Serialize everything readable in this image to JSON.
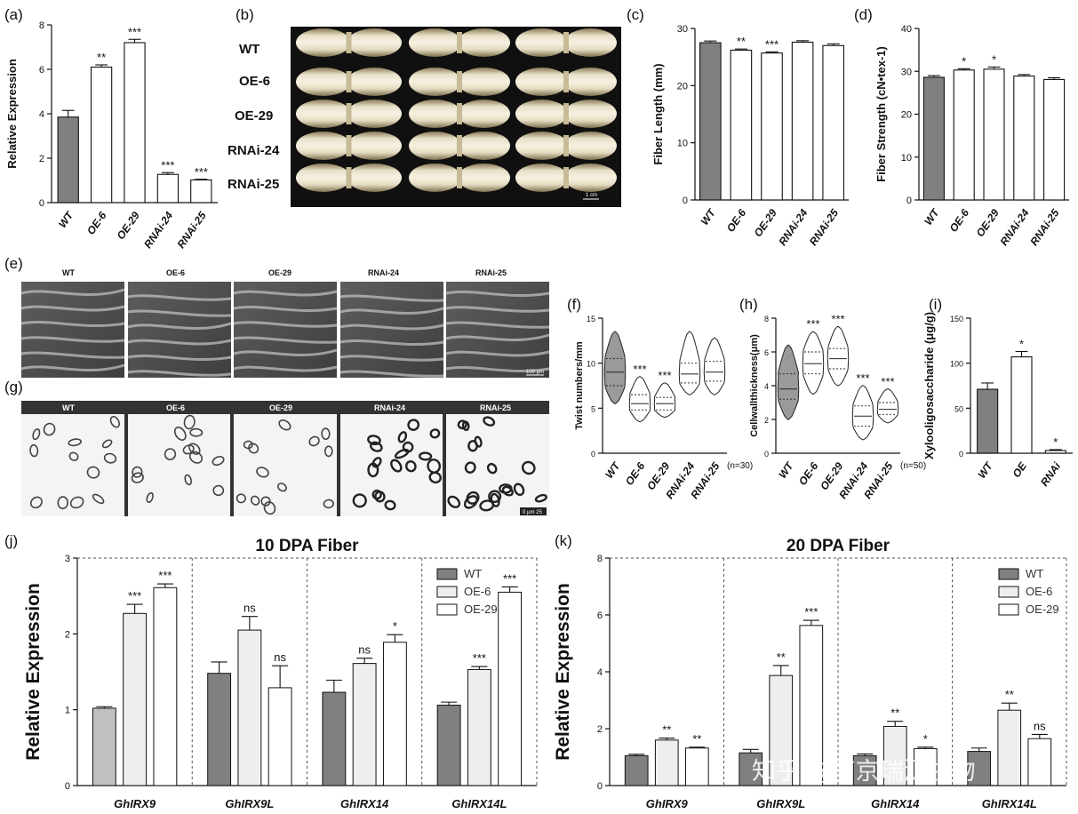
{
  "panels": {
    "a": "(a)",
    "b": "(b)",
    "c": "(c)",
    "d": "(d)",
    "e": "(e)",
    "f": "(f)",
    "g": "(g)",
    "h": "(h)",
    "i": "(i)",
    "j": "(j)",
    "k": "(k)"
  },
  "photo": {
    "line_names": [
      "WT",
      "OE-6",
      "OE-29",
      "RNAi-24",
      "RNAi-25"
    ],
    "scale": "1 cm"
  },
  "sem": {
    "labels": [
      "WT",
      "OE-6",
      "OE-29",
      "RNAi-24",
      "RNAi-25"
    ],
    "scale": "100 μm"
  },
  "sections": {
    "labels": [
      "WT",
      "OE-6",
      "OE-29",
      "RNAi-24",
      "RNAi-25"
    ],
    "scale": "0  μm  25"
  },
  "colors": {
    "wt": "#808080",
    "oe6": "#eeeeee",
    "white": "#ffffff",
    "ink": "#111111"
  },
  "watermark": "知乎 @南京瑞源生物",
  "chart_data": [
    {
      "id": "a",
      "type": "bar",
      "categories": [
        "WT",
        "OE-6",
        "OE-29",
        "RNAi-24",
        "RNAi-25"
      ],
      "values": [
        3.85,
        6.1,
        7.2,
        1.27,
        1.02
      ],
      "errors": [
        0.3,
        0.1,
        0.15,
        0.08,
        0.03
      ],
      "significance": [
        "",
        "**",
        "***",
        "***",
        "***"
      ],
      "ylabel": "Relative Expression",
      "ylim": [
        0,
        8
      ],
      "yticks": [
        0,
        2,
        4,
        6,
        8
      ]
    },
    {
      "id": "c",
      "type": "bar",
      "categories": [
        "WT",
        "OE-6",
        "OE-29",
        "RNAi-24",
        "RNAi-25"
      ],
      "values": [
        27.5,
        26.2,
        25.7,
        27.6,
        27.0
      ],
      "errors": [
        0.3,
        0.2,
        0.2,
        0.25,
        0.3
      ],
      "significance": [
        "",
        "**",
        "***",
        "",
        ""
      ],
      "ylabel": "Fiber Length (mm)",
      "ylim": [
        0,
        30
      ],
      "yticks": [
        0,
        10,
        20,
        30
      ]
    },
    {
      "id": "d",
      "type": "bar",
      "categories": [
        "WT",
        "OE-6",
        "OE-29",
        "RNAi-24",
        "RNAi-25"
      ],
      "values": [
        28.6,
        30.3,
        30.5,
        28.9,
        28.1
      ],
      "errors": [
        0.4,
        0.3,
        0.5,
        0.35,
        0.4
      ],
      "significance": [
        "",
        "*",
        "*",
        "",
        ""
      ],
      "ylabel": "Fiber Strength (cN•tex-1)",
      "ylim": [
        0,
        40
      ],
      "yticks": [
        0,
        10,
        20,
        30,
        40
      ]
    },
    {
      "id": "f",
      "type": "violin",
      "categories": [
        "WT",
        "OE-6",
        "OE-29",
        "RNAi-24",
        "RNAi-25"
      ],
      "violins": [
        {
          "min": 5.5,
          "q1": 7.5,
          "median": 9.0,
          "q3": 10.5,
          "max": 13.5
        },
        {
          "min": 3.5,
          "q1": 4.8,
          "median": 5.5,
          "q3": 6.5,
          "max": 8.5
        },
        {
          "min": 4.0,
          "q1": 4.8,
          "median": 5.5,
          "q3": 6.2,
          "max": 7.8
        },
        {
          "min": 6.5,
          "q1": 7.8,
          "median": 8.8,
          "q3": 10.0,
          "max": 13.5
        },
        {
          "min": 6.5,
          "q1": 8.0,
          "median": 9.0,
          "q3": 10.2,
          "max": 12.8
        }
      ],
      "significance": [
        "",
        "***",
        "***",
        "",
        ""
      ],
      "ylabel": "Twist numbers/mm",
      "ylim": [
        0,
        15
      ],
      "yticks": [
        0,
        5,
        10,
        15
      ],
      "note": "(n=30)"
    },
    {
      "id": "h",
      "type": "violin",
      "categories": [
        "WT",
        "OE-6",
        "OE-29",
        "RNAi-24",
        "RNAi-25"
      ],
      "violins": [
        {
          "min": 2.0,
          "q1": 3.2,
          "median": 3.8,
          "q3": 4.7,
          "max": 6.4
        },
        {
          "min": 3.5,
          "q1": 4.7,
          "median": 5.3,
          "q3": 6.0,
          "max": 7.2
        },
        {
          "min": 4.0,
          "q1": 5.0,
          "median": 5.6,
          "q3": 6.2,
          "max": 7.5
        },
        {
          "min": 0.8,
          "q1": 1.6,
          "median": 2.2,
          "q3": 2.8,
          "max": 4.0
        },
        {
          "min": 1.8,
          "q1": 2.3,
          "median": 2.6,
          "q3": 3.0,
          "max": 3.8
        }
      ],
      "significance": [
        "",
        "***",
        "***",
        "***",
        "***"
      ],
      "ylabel": "Cellwallthickness(μm)",
      "ylim": [
        0,
        8
      ],
      "yticks": [
        0,
        2,
        4,
        6,
        8
      ],
      "note": "(n=50)"
    },
    {
      "id": "i",
      "type": "bar",
      "categories": [
        "WT",
        "OE",
        "RNAi"
      ],
      "values": [
        71,
        107,
        3
      ],
      "errors": [
        7,
        6,
        1
      ],
      "significance": [
        "",
        "*",
        "*"
      ],
      "ylabel": "Xylooligosaccharide (μg/g)",
      "ylim": [
        0,
        150
      ],
      "yticks": [
        0,
        50,
        100,
        150
      ]
    },
    {
      "id": "j",
      "type": "bar",
      "title": "10 DPA Fiber",
      "categories": [
        "GhIRX9",
        "GhIRX9L",
        "GhIRX14",
        "GhIRX14L"
      ],
      "series": [
        {
          "name": "WT",
          "values": [
            1.02,
            1.48,
            1.23,
            1.06
          ],
          "errors": [
            0.02,
            0.15,
            0.16,
            0.04
          ],
          "significance": [
            "",
            "",
            "",
            ""
          ]
        },
        {
          "name": "OE-6",
          "values": [
            2.27,
            2.05,
            1.61,
            1.53
          ],
          "errors": [
            0.12,
            0.18,
            0.07,
            0.04
          ],
          "significance": [
            "***",
            "ns",
            "ns",
            "***"
          ]
        },
        {
          "name": "OE-29",
          "values": [
            2.61,
            1.29,
            1.89,
            2.55
          ],
          "errors": [
            0.05,
            0.29,
            0.1,
            0.07
          ],
          "significance": [
            "***",
            "ns",
            "*",
            "***"
          ]
        }
      ],
      "ylabel": "Relative Expression",
      "ylim": [
        0,
        3
      ],
      "yticks": [
        0,
        1,
        2,
        3
      ]
    },
    {
      "id": "k",
      "type": "bar",
      "title": "20 DPA Fiber",
      "categories": [
        "GhIRX9",
        "GhIRX9L",
        "GhIRX14",
        "GhIRX14L"
      ],
      "series": [
        {
          "name": "WT",
          "values": [
            1.05,
            1.15,
            1.05,
            1.2
          ],
          "errors": [
            0.05,
            0.12,
            0.06,
            0.12
          ],
          "significance": [
            "",
            "",
            "",
            ""
          ]
        },
        {
          "name": "OE-6",
          "values": [
            1.6,
            3.87,
            2.08,
            2.65
          ],
          "errors": [
            0.07,
            0.35,
            0.18,
            0.25
          ],
          "significance": [
            "**",
            "**",
            "**",
            "**"
          ]
        },
        {
          "name": "OE-29",
          "values": [
            1.32,
            5.63,
            1.3,
            1.65
          ],
          "errors": [
            0.03,
            0.18,
            0.05,
            0.15
          ],
          "significance": [
            "**",
            "***",
            "*",
            "ns"
          ]
        }
      ],
      "ylabel": "Relative Expression",
      "ylim": [
        0,
        8
      ],
      "yticks": [
        0,
        2,
        4,
        6,
        8
      ]
    }
  ]
}
